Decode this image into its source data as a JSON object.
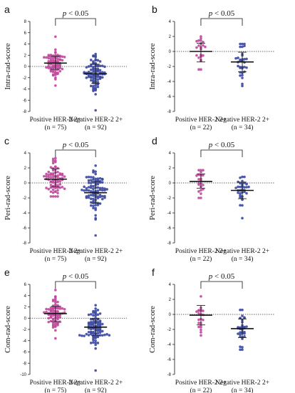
{
  "chart_data": [
    {
      "panel": "a",
      "type": "scatter",
      "ylabel": "Intra-rad-score",
      "ylim": [
        -8,
        8
      ],
      "yticks": [
        -8,
        -6,
        -4,
        -2,
        0,
        2,
        4,
        6,
        8
      ],
      "categories": [
        "Positive HER-2 2+",
        "Negative HER-2 2+"
      ],
      "counts": [
        "(n = 75)",
        "(n = 92)"
      ],
      "significance": "p < 0.05",
      "series": [
        {
          "n": 75,
          "color": "#c0479b",
          "mean": 0.6,
          "sd_range": [
            -0.5,
            1.8
          ],
          "min": -3.4,
          "max": 5.3
        },
        {
          "n": 92,
          "color": "#3a47a0",
          "mean": -1.3,
          "sd_range": [
            -3.0,
            0.4
          ],
          "min": -7.8,
          "max": 2.2
        }
      ]
    },
    {
      "panel": "b",
      "type": "scatter",
      "ylabel": "Intra-rad-score",
      "ylim": [
        -8,
        4
      ],
      "yticks": [
        -8,
        -6,
        -4,
        -2,
        0,
        2,
        4
      ],
      "categories": [
        "Positive HER-2 2+",
        "Negative HER-2 2+"
      ],
      "counts": [
        "(n = 22)",
        "(n = 34)"
      ],
      "significance": "p < 0.05",
      "series": [
        {
          "n": 22,
          "color": "#c0479b",
          "mean": 0.0,
          "sd_range": [
            -1.4,
            1.1
          ],
          "min": -2.4,
          "max": 2.0
        },
        {
          "n": 34,
          "color": "#3a47a0",
          "mean": -1.4,
          "sd_range": [
            -2.7,
            -0.1
          ],
          "min": -4.6,
          "max": 1.0
        }
      ]
    },
    {
      "panel": "c",
      "type": "scatter",
      "ylabel": "Peri-rad-score",
      "ylim": [
        -8,
        4
      ],
      "yticks": [
        -8,
        -6,
        -4,
        -2,
        0,
        2,
        4
      ],
      "categories": [
        "Positive HER-2 2+",
        "Negative HER-2 2+"
      ],
      "counts": [
        "(n = 75)",
        "(n = 92)"
      ],
      "significance": "p < 0.05",
      "series": [
        {
          "n": 75,
          "color": "#c0479b",
          "mean": 0.5,
          "sd_range": [
            -0.5,
            1.9
          ],
          "min": -1.8,
          "max": 3.3
        },
        {
          "n": 92,
          "color": "#3a47a0",
          "mean": -1.3,
          "sd_range": [
            -2.7,
            0.2
          ],
          "min": -7.0,
          "max": 2.3
        }
      ]
    },
    {
      "panel": "d",
      "type": "scatter",
      "ylabel": "Peri-rad-score",
      "ylim": [
        -8,
        4
      ],
      "yticks": [
        -8,
        -6,
        -4,
        -2,
        0,
        2,
        4
      ],
      "categories": [
        "Positive HER-2 2+",
        "Negative HER-2 2+"
      ],
      "counts": [
        "(n = 22)",
        "(n = 34)"
      ],
      "significance": "p < 0.05",
      "series": [
        {
          "n": 22,
          "color": "#c0479b",
          "mean": 0.2,
          "sd_range": [
            -0.7,
            1.2
          ],
          "min": -2.0,
          "max": 1.7
        },
        {
          "n": 34,
          "color": "#3a47a0",
          "mean": -1.0,
          "sd_range": [
            -2.1,
            0.1
          ],
          "min": -4.7,
          "max": 0.8
        }
      ]
    },
    {
      "panel": "e",
      "type": "scatter",
      "ylabel": "Com-rad-score",
      "ylim": [
        -10,
        6
      ],
      "yticks": [
        -10,
        -8,
        -6,
        -4,
        -2,
        0,
        2,
        4,
        6
      ],
      "categories": [
        "Positive HER-2 2+",
        "Negative HER-2 2+"
      ],
      "counts": [
        "(n = 75)",
        "(n = 92)"
      ],
      "significance": "p < 0.05",
      "series": [
        {
          "n": 75,
          "color": "#c0479b",
          "mean": 0.8,
          "sd_range": [
            -0.6,
            2.1
          ],
          "min": -3.6,
          "max": 5.0
        },
        {
          "n": 92,
          "color": "#3a47a0",
          "mean": -1.6,
          "sd_range": [
            -3.1,
            -0.1
          ],
          "min": -9.3,
          "max": 2.3
        }
      ]
    },
    {
      "panel": "f",
      "type": "scatter",
      "ylabel": "Com-rad-score",
      "ylim": [
        -8,
        4
      ],
      "yticks": [
        -8,
        -6,
        -4,
        -2,
        0,
        2,
        4
      ],
      "categories": [
        "Positive HER-2 2+",
        "Negative HER-2 2+"
      ],
      "counts": [
        "(n = 22)",
        "(n = 34)"
      ],
      "significance": "p < 0.05",
      "series": [
        {
          "n": 22,
          "color": "#c0479b",
          "mean": -0.1,
          "sd_range": [
            -1.4,
            1.2
          ],
          "min": -2.8,
          "max": 2.4
        },
        {
          "n": 34,
          "color": "#3a47a0",
          "mean": -1.9,
          "sd_range": [
            -3.1,
            -0.6
          ],
          "min": -4.7,
          "max": 0.6
        }
      ]
    }
  ]
}
